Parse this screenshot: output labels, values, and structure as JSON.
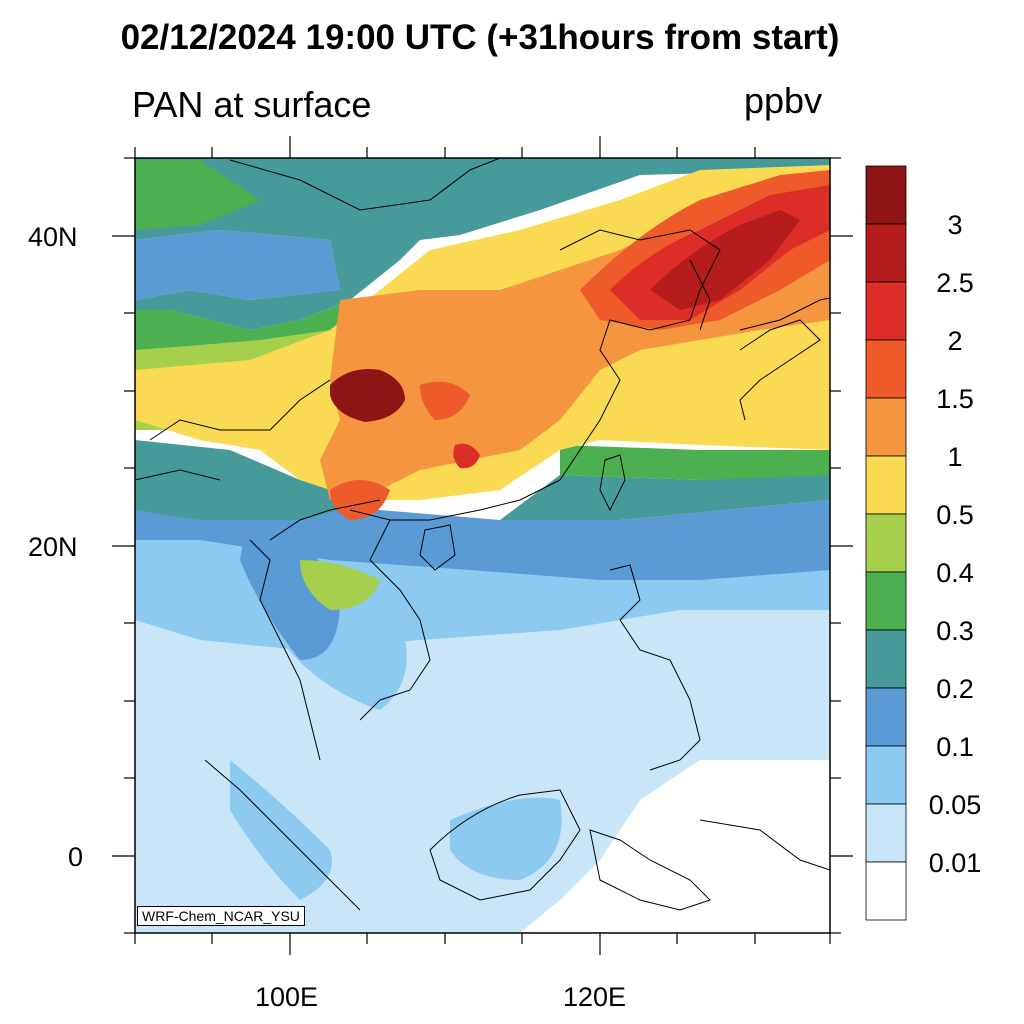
{
  "header": {
    "title": "02/12/2024 19:00 UTC (+31hours from start)",
    "variable": "PAN at surface",
    "units": "ppbv"
  },
  "axes": {
    "lat_labels": [
      "40N",
      "20N",
      "0"
    ],
    "lon_labels": [
      "100E",
      "120E"
    ]
  },
  "colorbar": {
    "levels": [
      "3",
      "2.5",
      "2",
      "1.5",
      "1",
      "0.5",
      "0.4",
      "0.3",
      "0.2",
      "0.1",
      "0.05",
      "0.01"
    ],
    "colors": [
      "#8f1414",
      "#b51c1c",
      "#dc2d26",
      "#ee5a2a",
      "#f6953f",
      "#f9da52",
      "#a6cf4e",
      "#4caf50",
      "#469a9a",
      "#5b9bd5",
      "#8ccaf0",
      "#c8e6f8",
      "#ffffff"
    ]
  },
  "credit": "WRF-Chem_NCAR_YSU"
}
